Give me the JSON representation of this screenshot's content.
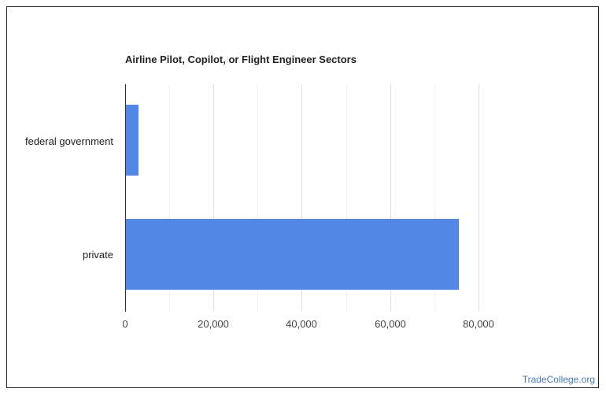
{
  "chart_data": {
    "type": "bar",
    "orientation": "horizontal",
    "title": "Airline Pilot, Copilot, or Flight Engineer Sectors",
    "categories": [
      "federal government",
      "private"
    ],
    "values": [
      3000,
      75600
    ],
    "xlabel": "",
    "ylabel": "",
    "xlim": [
      0,
      80000
    ],
    "x_ticks": [
      "0",
      "20,000",
      "40,000",
      "60,000",
      "80,000"
    ],
    "grid": true,
    "legend": null,
    "bar_color": "#5385e4"
  },
  "footer": {
    "brand": "TradeCollege.org"
  }
}
